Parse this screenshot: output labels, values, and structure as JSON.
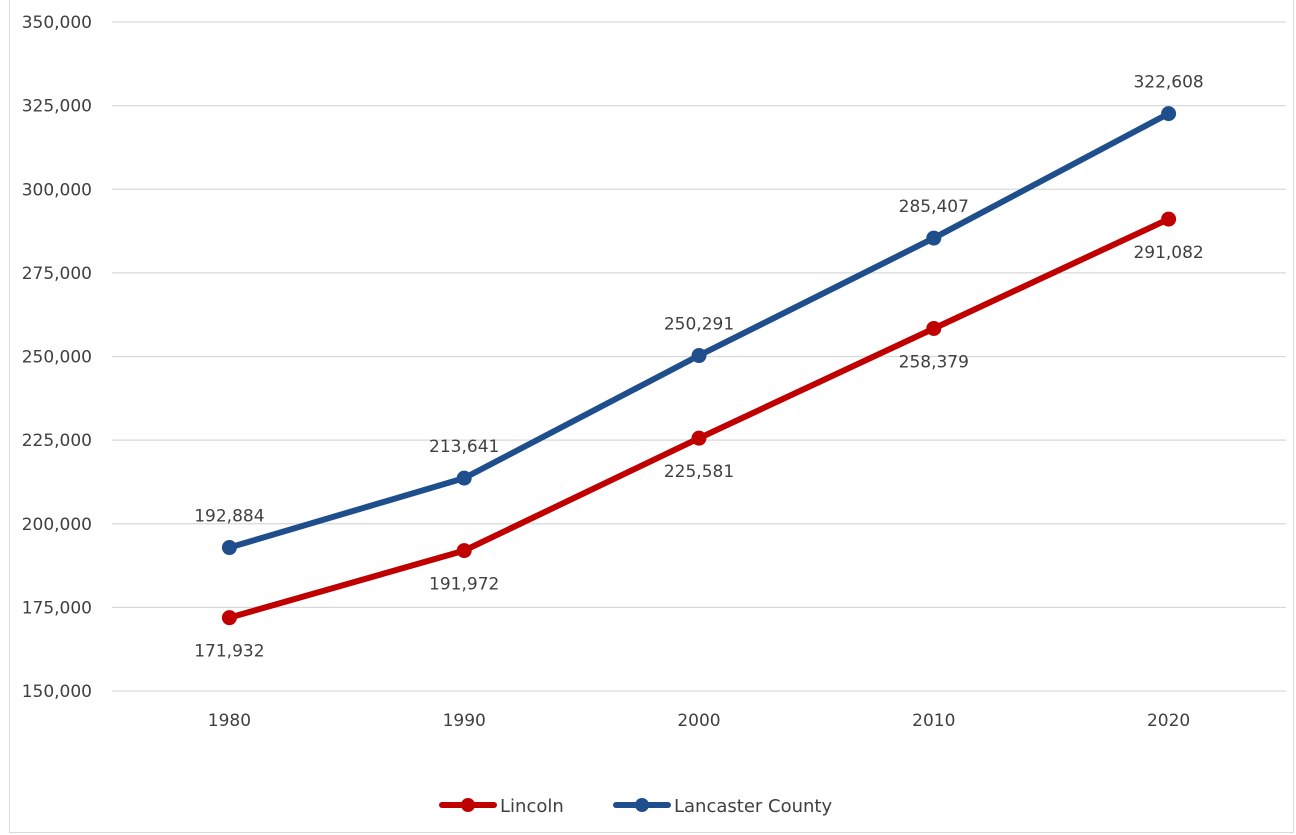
{
  "chart_data": {
    "type": "line",
    "categories": [
      "1980",
      "1990",
      "2000",
      "2010",
      "2020"
    ],
    "series": [
      {
        "name": "Lincoln",
        "color": "#c00000",
        "values": [
          171932,
          191972,
          225581,
          258379,
          291082
        ],
        "labels": [
          "171,932",
          "191,972",
          "225,581",
          "258,379",
          "291,082"
        ],
        "label_position": "below"
      },
      {
        "name": "Lancaster County",
        "color": "#1f4e8c",
        "values": [
          192884,
          213641,
          250291,
          285407,
          322608
        ],
        "labels": [
          "192,884",
          "213,641",
          "250,291",
          "285,407",
          "322,608"
        ],
        "label_position": "above"
      }
    ],
    "ylim": [
      150000,
      350000
    ],
    "yticks": [
      150000,
      175000,
      200000,
      225000,
      250000,
      275000,
      300000,
      325000,
      350000
    ],
    "ytick_labels": [
      "150,000",
      "175,000",
      "200,000",
      "225,000",
      "250,000",
      "275,000",
      "300,000",
      "325,000",
      "350,000"
    ],
    "grid": true,
    "legend_position": "bottom-center"
  }
}
